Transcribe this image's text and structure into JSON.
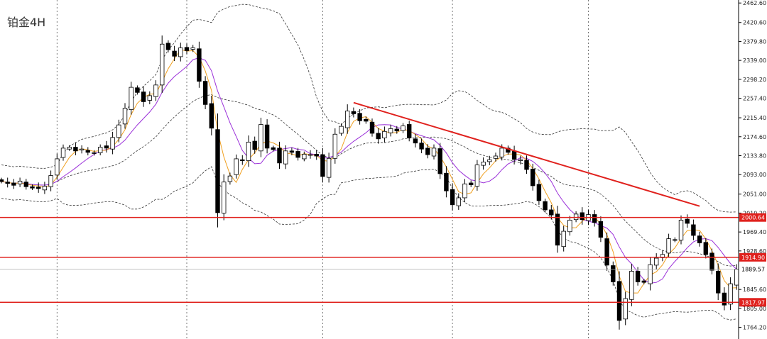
{
  "chart_data": {
    "type": "candlestick",
    "title": "铂金4H",
    "y_tick_labels": [
      "2462.60",
      "2420.60",
      "2379.80",
      "2339.00",
      "2298.20",
      "2257.40",
      "2215.40",
      "2174.60",
      "2133.80",
      "2093.00",
      "2051.00",
      "2010.20",
      "1969.40",
      "1928.60",
      "1845.60",
      "1805.00",
      "1764.20"
    ],
    "ylim": [
      1742,
      2466
    ],
    "horizontal_levels": [
      {
        "label": "2000.64",
        "value": 2000.64,
        "color": "#e0211d"
      },
      {
        "label": "1914.90",
        "value": 1914.9,
        "color": "#e0211d"
      },
      {
        "label": "1817.97",
        "value": 1817.97,
        "color": "#e0211d"
      }
    ],
    "current_price": {
      "label": "1889.57",
      "value": 1889.57
    },
    "trendline": {
      "from": {
        "index": 57,
        "price": 2248
      },
      "to": {
        "index": 113,
        "price": 2025
      },
      "color": "#e0211d"
    },
    "vertical_separators_at_index": [
      9,
      30,
      52,
      73,
      95
    ],
    "closes": [
      2078,
      2074,
      2070,
      2079,
      2067,
      2064,
      2063,
      2068,
      2091,
      2127,
      2150,
      2152,
      2144,
      2148,
      2141,
      2139,
      2152,
      2150,
      2173,
      2200,
      2236,
      2281,
      2270,
      2250,
      2263,
      2286,
      2374,
      2362,
      2348,
      2366,
      2360,
      2366,
      2294,
      2244,
      2193,
      2011,
      2077,
      2090,
      2127,
      2123,
      2163,
      2147,
      2201,
      2150,
      2147,
      2118,
      2144,
      2141,
      2130,
      2137,
      2136,
      2133,
      2089,
      2128,
      2180,
      2197,
      2230,
      2224,
      2209,
      2208,
      2182,
      2170,
      2186,
      2192,
      2187,
      2198,
      2172,
      2161,
      2148,
      2136,
      2150,
      2095,
      2058,
      2028,
      2043,
      2073,
      2071,
      2114,
      2120,
      2125,
      2133,
      2150,
      2141,
      2126,
      2125,
      2104,
      2069,
      2037,
      2017,
      2006,
      1941,
      1971,
      1995,
      2008,
      1996,
      2007,
      1990,
      1958,
      1898,
      1862,
      1779,
      1826,
      1885,
      1862,
      1861,
      1899,
      1913,
      1921,
      1955,
      1952,
      1995,
      1988,
      1962,
      1946,
      1921,
      1887,
      1838,
      1812,
      1858,
      1889
    ],
    "indicators": [
      "MA-fast (orange)",
      "MA-slow (purple)",
      "Bollinger bands (dashed)"
    ]
  }
}
